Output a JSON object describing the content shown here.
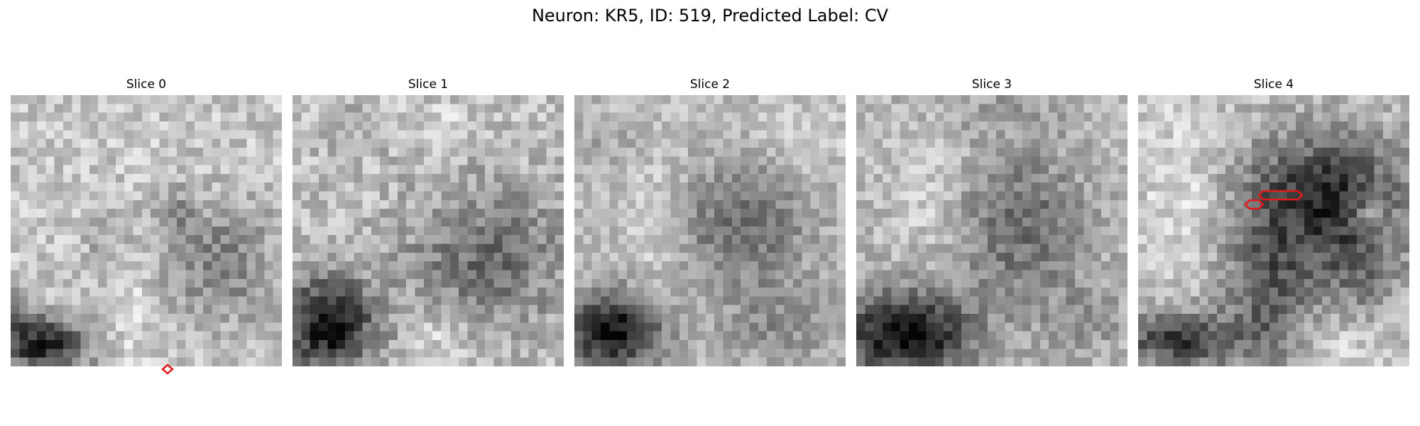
{
  "figure": {
    "title": "Neuron: KR5, ID: 519, Predicted Label: CV"
  },
  "panels": [
    {
      "title": "Slice 0"
    },
    {
      "title": "Slice 1"
    },
    {
      "title": "Slice 2"
    },
    {
      "title": "Slice 3"
    },
    {
      "title": "Slice 4"
    }
  ],
  "colors": {
    "colormap": "gray",
    "contour": "#e31a1c",
    "background": "#ffffff"
  }
}
